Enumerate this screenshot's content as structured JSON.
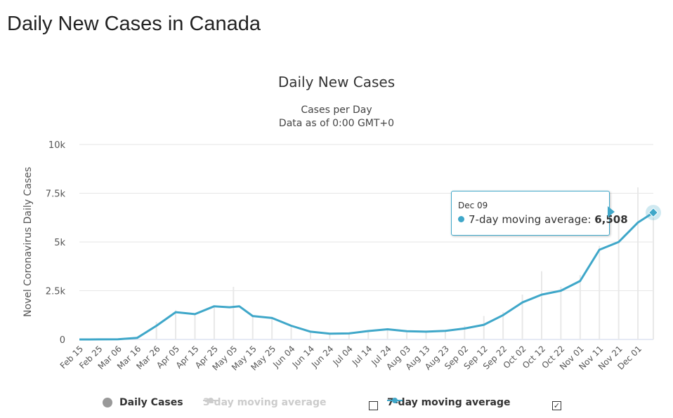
{
  "page": {
    "title": "Daily New Cases in Canada"
  },
  "chart_data": {
    "type": "line",
    "title": "Daily New Cases",
    "subtitle_line1": "Cases per Day",
    "subtitle_line2": "Data as of 0:00 GMT+0",
    "ylabel": "Novel Coronavirus Daily Cases",
    "xlabel": "",
    "ylim": [
      0,
      10000
    ],
    "yticks": [
      {
        "value": 0,
        "label": "0"
      },
      {
        "value": 2500,
        "label": "2.5k"
      },
      {
        "value": 5000,
        "label": "5k"
      },
      {
        "value": 7500,
        "label": "7.5k"
      },
      {
        "value": 10000,
        "label": "10k"
      }
    ],
    "grid": true,
    "start_date": "Feb 15",
    "end_date": "Dec 09",
    "xtick_labels": [
      "Feb 15",
      "Feb 25",
      "Mar 06",
      "Mar 16",
      "Mar 26",
      "Apr 05",
      "Apr 15",
      "Apr 25",
      "May 05",
      "May 15",
      "May 25",
      "Jun 04",
      "Jun 14",
      "Jun 24",
      "Jul 04",
      "Jul 14",
      "Jul 24",
      "Aug 03",
      "Aug 13",
      "Aug 23",
      "Sep 02",
      "Sep 12",
      "Sep 22",
      "Oct 02",
      "Oct 12",
      "Oct 22",
      "Nov 01",
      "Nov 11",
      "Nov 21",
      "Dec 01"
    ],
    "series": [
      {
        "name": "Daily Cases",
        "kind": "bar",
        "color": "#e8e8e8",
        "visible": true,
        "x": [
          "Feb 15",
          "Mar 06",
          "Mar 16",
          "Mar 26",
          "Apr 05",
          "Apr 15",
          "Apr 25",
          "May 05",
          "May 15",
          "May 25",
          "Jun 04",
          "Jun 14",
          "Jun 24",
          "Jul 04",
          "Jul 14",
          "Jul 24",
          "Aug 03",
          "Aug 13",
          "Aug 23",
          "Sep 02",
          "Sep 12",
          "Sep 22",
          "Oct 02",
          "Oct 12",
          "Oct 22",
          "Nov 01",
          "Nov 11",
          "Nov 21",
          "Dec 01",
          "Dec 09"
        ],
        "values": [
          0,
          10,
          150,
          900,
          1500,
          1300,
          1700,
          2700,
          1200,
          1100,
          650,
          350,
          300,
          300,
          450,
          500,
          350,
          400,
          400,
          700,
          1200,
          1400,
          2300,
          3500,
          2700,
          3300,
          4800,
          6000,
          7800,
          6500
        ]
      },
      {
        "name": "3-day moving average",
        "kind": "line",
        "color": "#cccccc",
        "visible": false,
        "x": [],
        "values": []
      },
      {
        "name": "7-day moving average",
        "kind": "line",
        "color": "#3fa7c9",
        "visible": true,
        "x": [
          "Feb 15",
          "Feb 25",
          "Mar 06",
          "Mar 16",
          "Mar 26",
          "Apr 05",
          "Apr 10",
          "Apr 15",
          "Apr 25",
          "May 03",
          "May 08",
          "May 15",
          "May 25",
          "Jun 04",
          "Jun 14",
          "Jun 24",
          "Jul 04",
          "Jul 14",
          "Jul 24",
          "Aug 03",
          "Aug 13",
          "Aug 23",
          "Sep 02",
          "Sep 12",
          "Sep 22",
          "Oct 02",
          "Oct 12",
          "Oct 22",
          "Nov 01",
          "Nov 11",
          "Nov 21",
          "Dec 01",
          "Dec 09"
        ],
        "values": [
          0,
          2,
          10,
          80,
          700,
          1400,
          1350,
          1300,
          1700,
          1650,
          1700,
          1200,
          1100,
          700,
          400,
          300,
          310,
          430,
          520,
          420,
          400,
          440,
          560,
          750,
          1250,
          1900,
          2300,
          2500,
          3000,
          4600,
          5000,
          6000,
          6508
        ]
      }
    ],
    "tooltip": {
      "date": "Dec 09",
      "series": "7-day moving average",
      "value_text": "6,508"
    },
    "legend": {
      "placement": "bottom",
      "items": [
        {
          "label": "Daily Cases",
          "color": "#999999",
          "checkbox": false
        },
        {
          "label": "3-day moving average",
          "color": "#cccccc",
          "checkbox": true,
          "checked": false,
          "dim": true
        },
        {
          "label": "7-day moving average",
          "color": "#3fa7c9",
          "checkbox": true,
          "checked": true
        }
      ]
    }
  }
}
